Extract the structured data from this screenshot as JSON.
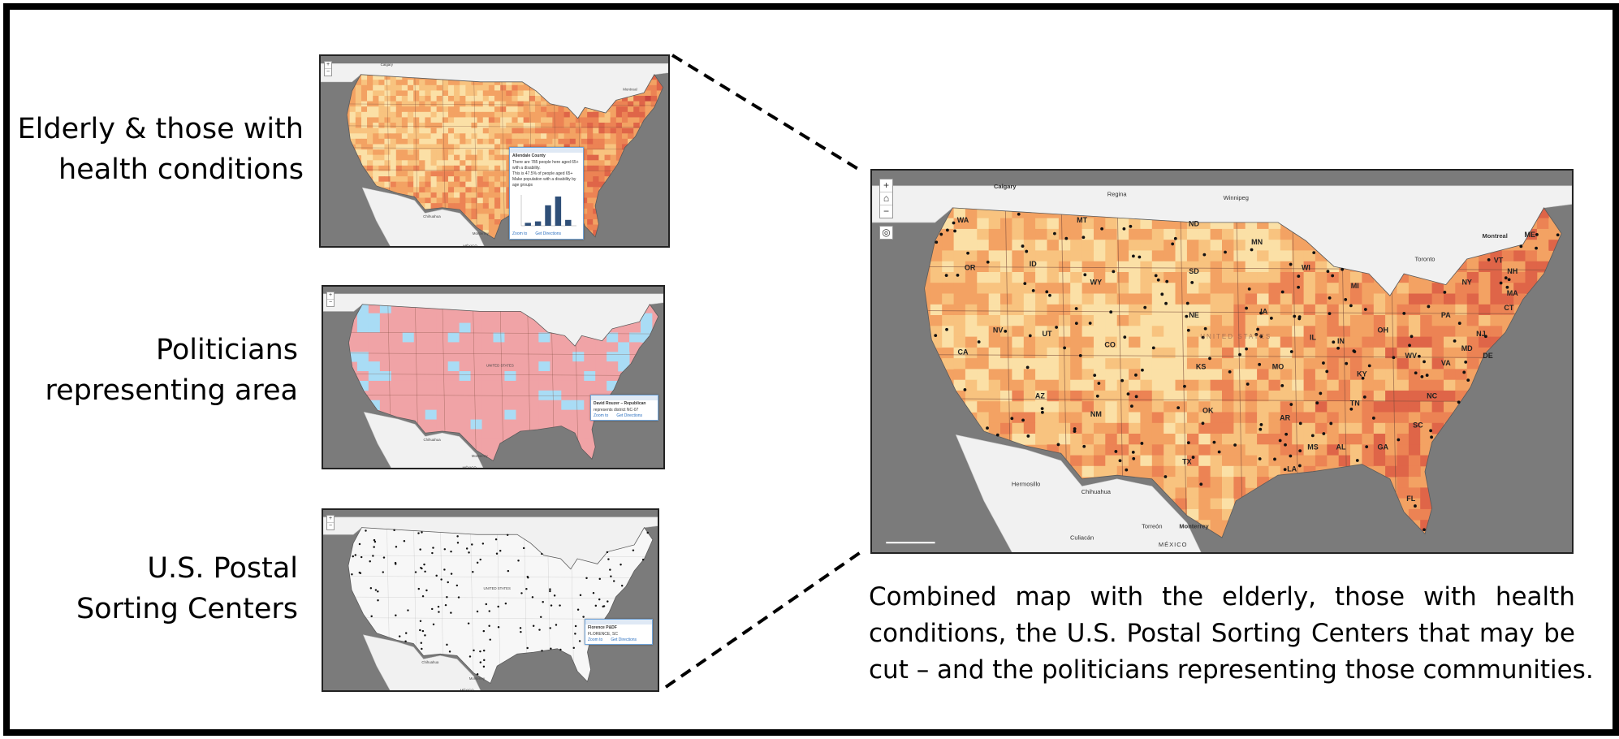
{
  "labels": {
    "elderly": [
      "Elderly & those  with",
      "health conditions"
    ],
    "politicians": [
      "Politicians",
      "representing area"
    ],
    "postal": [
      "U.S. Postal",
      "Sorting Centers"
    ]
  },
  "caption": [
    "Combined map with the elderly, those with health",
    "conditions, the U.S. Postal Sorting Centers that may be",
    "cut – and the politicians representing those communities."
  ],
  "map_controls": {
    "zoom_in": "+",
    "home": "⌂",
    "zoom_out": "−",
    "locate": "◎"
  },
  "big_map": {
    "cities": [
      "Calgary",
      "Regina",
      "Winnipeg",
      "Montreal",
      "Toronto",
      "Chihuahua",
      "Hermosillo",
      "Monterrey",
      "Torreón",
      "Culiacán"
    ],
    "country_labels": [
      "MÉXICO",
      "UNITED STATES"
    ],
    "states": [
      "WA",
      "OR",
      "CA",
      "NV",
      "ID",
      "MT",
      "WY",
      "UT",
      "AZ",
      "CO",
      "NM",
      "ND",
      "SD",
      "NE",
      "KS",
      "OK",
      "TX",
      "MN",
      "IA",
      "MO",
      "AR",
      "LA",
      "WI",
      "IL",
      "MI",
      "IN",
      "OH",
      "KY",
      "TN",
      "MS",
      "AL",
      "GA",
      "FL",
      "SC",
      "NC",
      "VA",
      "WV",
      "PA",
      "NY",
      "VT",
      "NH",
      "ME",
      "MA",
      "CT",
      "NJ",
      "MD",
      "DE"
    ]
  },
  "thumb_elderly": {
    "popup_title": "Allendale County",
    "popup_lines": [
      "There are 785 people here aged 65+ with a disability.",
      "This is 47.5% of people aged 65+",
      "Make population with a disability by age groups"
    ],
    "popup_links": [
      "Zoom to",
      "Get Directions"
    ],
    "chart_values": [
      4,
      6,
      28,
      40,
      8
    ],
    "map_labels": [
      "Calgary",
      "Montreal",
      "Monterrey",
      "MÉXICO",
      "Chihuahua"
    ]
  },
  "thumb_politicians": {
    "popup_title": "David Rouzer – Republican",
    "popup_lines": [
      "represents district NC-07"
    ],
    "popup_links": [
      "Zoom to",
      "Get Directions"
    ],
    "map_labels": [
      "Monterrey",
      "MÉXICO",
      "UNITED STATES",
      "Chihuahua"
    ]
  },
  "thumb_postal": {
    "popup_title": "Florence P&DF",
    "popup_lines": [
      "FLORENCE, SC"
    ],
    "popup_links": [
      "Zoom to",
      "Get Directions"
    ],
    "map_labels": [
      "Monterrey",
      "MÉXICO",
      "UNITED STATES",
      "Chihuahua"
    ]
  },
  "colors": {
    "water": "#7b7b7b",
    "land_outside": "#f1f1f1",
    "choropleth": [
      "#fbe0a6",
      "#f8c37f",
      "#f3a263",
      "#ec8354",
      "#df6548",
      "#c9473e"
    ],
    "republican": "#f0a3a6",
    "democrat": "#a9dcf5",
    "postal_bg": "#f7f7f7",
    "dot": "#111111"
  }
}
